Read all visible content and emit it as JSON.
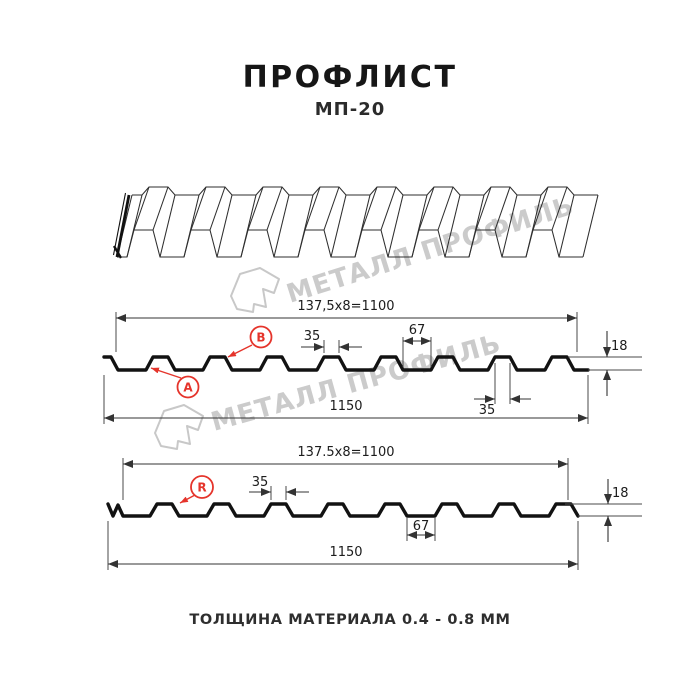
{
  "header": {
    "title": "ПРОФЛИСТ",
    "subtitle": "МП-20"
  },
  "footer": {
    "text": "ТОЛЩИНА МАТЕРИАЛА 0.4 - 0.8 ММ"
  },
  "watermark": {
    "text": "МЕТАЛЛ ПРОФИЛЬ"
  },
  "colors": {
    "accent_red": "#e5342b",
    "line": "#333333",
    "profile_black": "#121212",
    "watermark_gray": "#c9c9c9"
  },
  "diagram_a": {
    "dim_pitch": "137,5x8=1100",
    "dim_crest_width_top": "35",
    "dim_valley_width": "67",
    "dim_height": "18",
    "dim_crest_width_bottom": "35",
    "dim_overall": "1150",
    "label_a": "A",
    "label_b": "B"
  },
  "diagram_b": {
    "dim_pitch": "137.5x8=1100",
    "dim_crest_width": "35",
    "dim_height": "18",
    "dim_valley_width": "67",
    "dim_overall": "1150",
    "label_r": "R"
  }
}
